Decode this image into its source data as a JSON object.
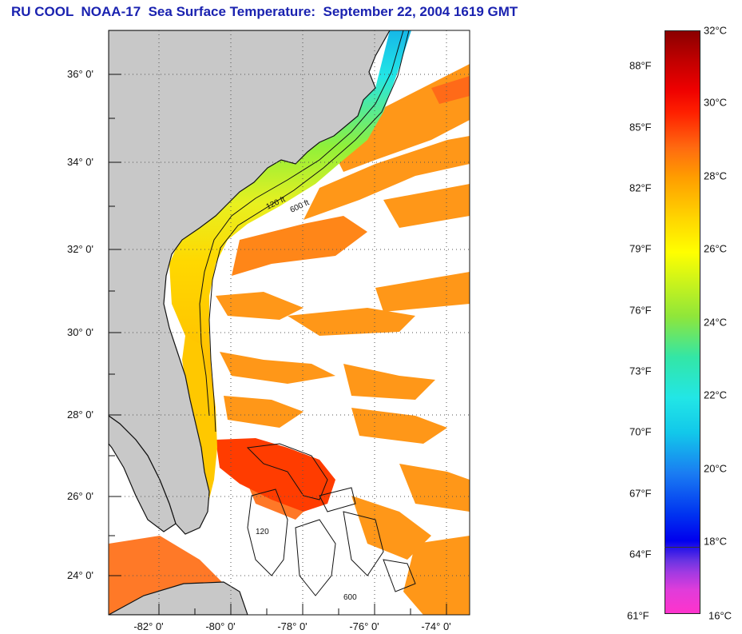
{
  "title": "RU COOL  NOAA-17  Sea Surface Temperature:  September 22, 2004 1619 GMT",
  "map": {
    "latitude_labels": [
      "36° 0'",
      "34° 0'",
      "32° 0'",
      "30° 0'",
      "28° 0'",
      "26° 0'",
      "24° 0'"
    ],
    "longitude_labels": [
      "-82° 0'",
      "-80° 0'",
      "-78° 0'",
      "-76° 0'",
      "-74° 0'"
    ],
    "contour_labels": [
      "120 ft",
      "600 ft",
      "120",
      "600"
    ],
    "colors": {
      "land": "#c8c8c8",
      "cloud": "#ffffff",
      "gulf_stream": "#ff8c00",
      "warm_core": "#ff3c00",
      "shelf_north": "#22e0e0",
      "shelf_mid": "#c8f020",
      "shelf_south": "#ffe000",
      "contour": "#111111"
    }
  },
  "colorbar": {
    "fahrenheit_labels": [
      "88°F",
      "85°F",
      "82°F",
      "79°F",
      "76°F",
      "73°F",
      "70°F",
      "67°F",
      "64°F",
      "61°F"
    ],
    "celsius_labels": [
      "32°C",
      "30°C",
      "28°C",
      "26°C",
      "24°C",
      "22°C",
      "20°C",
      "18°C",
      "16°C"
    ]
  }
}
